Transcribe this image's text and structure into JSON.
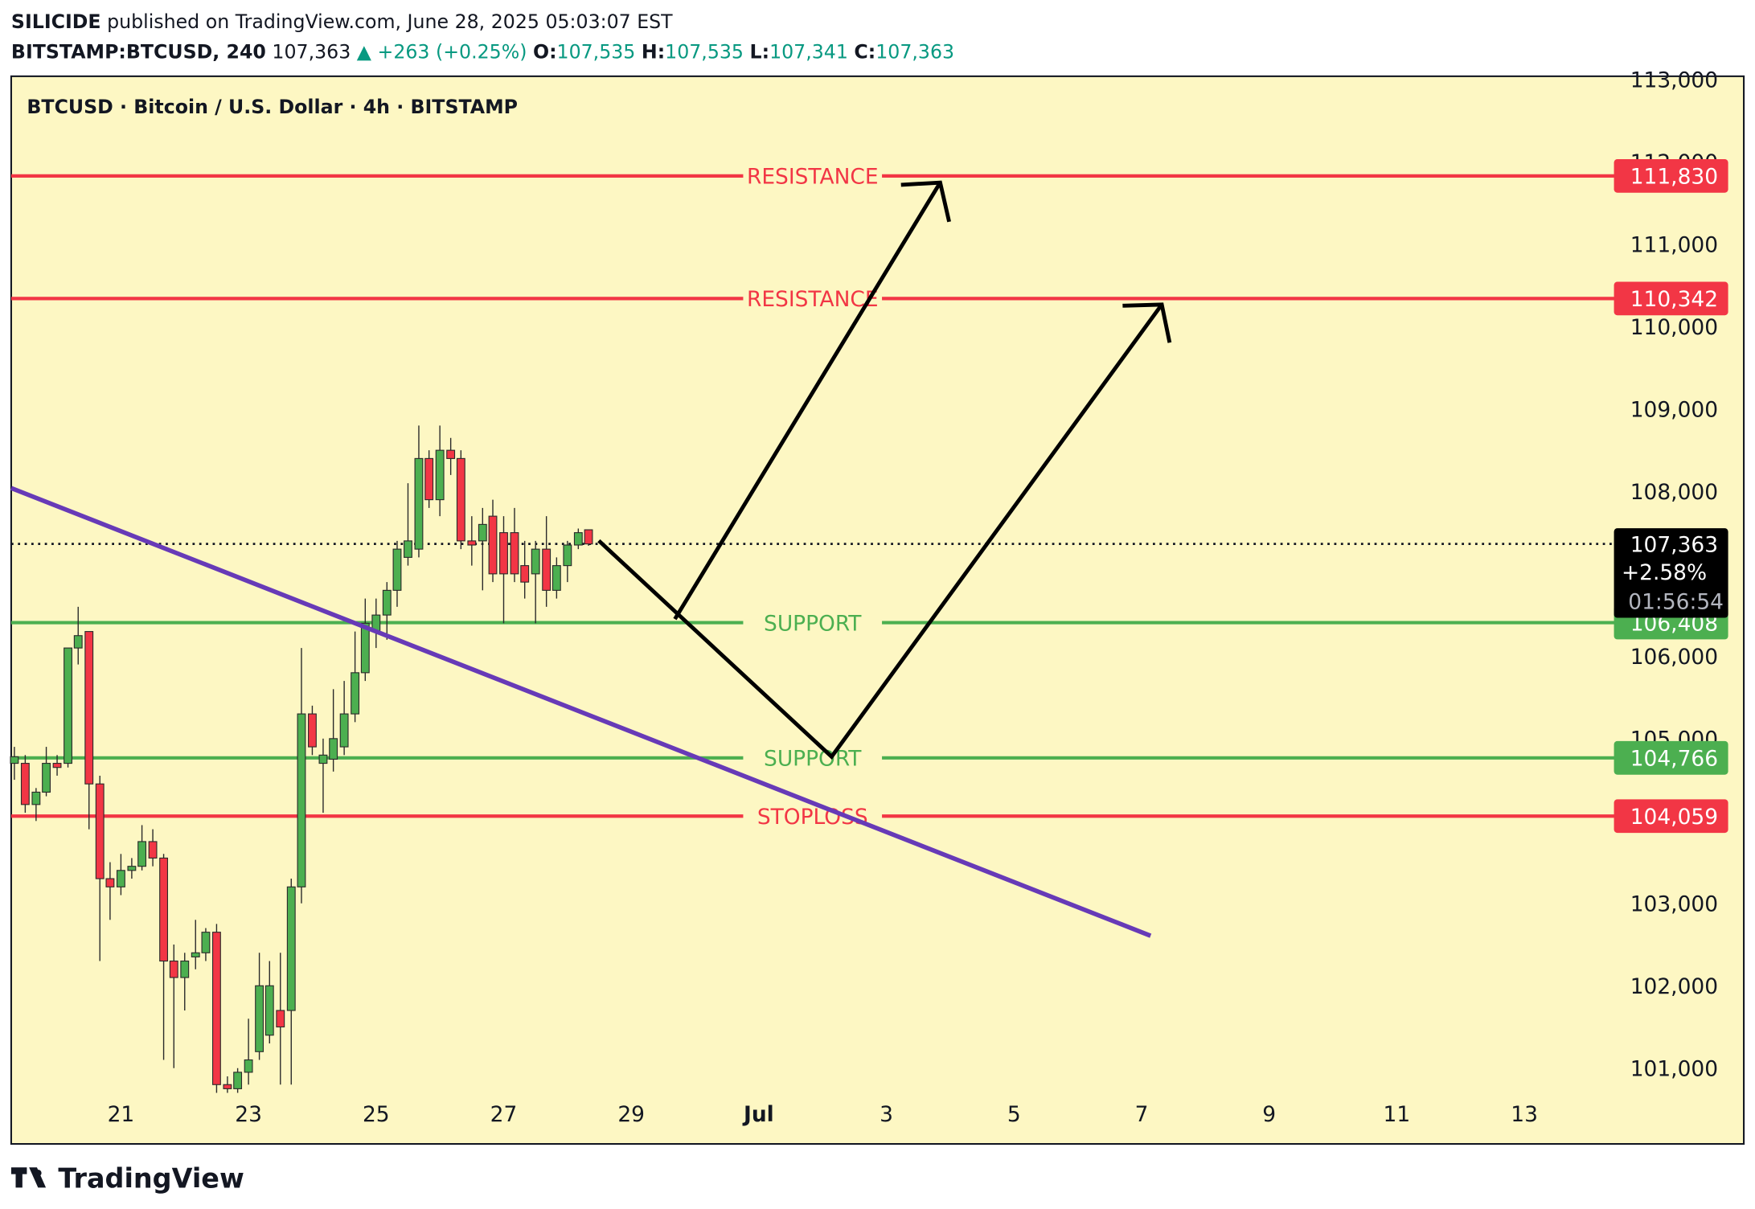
{
  "header": {
    "author": "SILICIDE",
    "published": "published on TradingView.com, June 28, 2025 05:03:07 EST",
    "symbol": "BITSTAMP:BTCUSD, 240",
    "last": "107,363",
    "change": "▲ +263 (+0.25%)",
    "o_label": "O:",
    "o": "107,535",
    "h_label": "H:",
    "h": "107,535",
    "l_label": "L:",
    "l": "107,341",
    "c_label": "C:",
    "c": "107,363"
  },
  "chart_data": {
    "type": "candlestick",
    "title": "BTCUSD · Bitcoin / U.S. Dollar · 4h · BITSTAMP",
    "x": [
      19.33,
      19.5,
      19.67,
      19.83,
      20,
      20.17,
      20.33,
      20.5,
      20.67,
      20.83,
      21,
      21.17,
      21.33,
      21.5,
      21.67,
      21.83,
      22,
      22.17,
      22.33,
      22.5,
      22.67,
      22.83,
      23,
      23.17,
      23.33,
      23.5,
      23.67,
      23.83,
      24,
      24.17,
      24.33,
      24.5,
      24.67,
      24.83,
      25,
      25.17,
      25.33,
      25.5,
      25.67,
      25.83,
      26,
      26.17,
      26.33,
      26.5,
      26.67,
      26.83,
      27,
      27.17,
      27.33,
      27.5,
      27.67,
      27.83,
      28,
      28.17,
      28.33
    ],
    "open": [
      104700,
      104700,
      104200,
      104350,
      104700,
      104700,
      106100,
      106300,
      104450,
      103300,
      103200,
      103400,
      103450,
      103750,
      103550,
      102300,
      102100,
      102350,
      102400,
      102650,
      100800,
      100750,
      100950,
      101200,
      101400,
      101700,
      101700,
      103200,
      105300,
      104700,
      104750,
      104900,
      105300,
      105800,
      106300,
      106500,
      106800,
      107200,
      107300,
      108400,
      107900,
      108500,
      108400,
      107400,
      107400,
      107700,
      107500,
      107500,
      107100,
      107000,
      107300,
      106800,
      107100,
      107350,
      107535
    ],
    "high": [
      104900,
      104800,
      104400,
      104900,
      104800,
      106100,
      106600,
      106300,
      104550,
      103500,
      103600,
      103550,
      103950,
      103900,
      103600,
      102500,
      102400,
      102800,
      102700,
      102750,
      100900,
      101000,
      101600,
      102400,
      102300,
      102400,
      103300,
      106100,
      105400,
      105000,
      105600,
      105700,
      106300,
      106700,
      106700,
      106900,
      107400,
      108100,
      108800,
      108500,
      108800,
      108650,
      108500,
      107700,
      107800,
      107900,
      107700,
      107800,
      107400,
      107400,
      107700,
      107200,
      107400,
      107550,
      107535
    ],
    "low": [
      104500,
      104100,
      104000,
      104300,
      104550,
      104650,
      105900,
      103900,
      102300,
      102800,
      103100,
      103300,
      103400,
      103450,
      101100,
      101000,
      101700,
      102200,
      102300,
      100700,
      100700,
      100700,
      100800,
      101100,
      101300,
      100800,
      100800,
      103000,
      104800,
      104100,
      104600,
      104800,
      105200,
      105700,
      106100,
      106200,
      106600,
      107100,
      107200,
      107800,
      107700,
      108200,
      107300,
      107100,
      106800,
      106900,
      106400,
      106900,
      106700,
      106400,
      106600,
      106700,
      106900,
      107300,
      107341
    ],
    "close": [
      104780,
      104200,
      104350,
      104700,
      104650,
      106100,
      106250,
      104450,
      103300,
      103200,
      103400,
      103450,
      103750,
      103550,
      102300,
      102100,
      102300,
      102400,
      102650,
      100800,
      100750,
      100950,
      101100,
      102000,
      102000,
      101500,
      103200,
      105300,
      104900,
      104800,
      105000,
      105300,
      105800,
      106400,
      106500,
      106800,
      107300,
      107400,
      108400,
      107900,
      108500,
      108400,
      107400,
      107350,
      107600,
      107000,
      107000,
      107000,
      106900,
      107300,
      106800,
      107100,
      107350,
      107500,
      107363
    ],
    "up_color": "#4caf50",
    "down_color": "#f23645",
    "xlim": [
      19.28,
      44.37
    ],
    "ylim": [
      100080,
      113040
    ],
    "xticks": [
      21,
      23,
      25,
      27,
      29,
      {
        "value": 31,
        "label": "Jul"
      },
      {
        "value": 33,
        "label": "3"
      },
      {
        "value": 35,
        "label": "5"
      },
      {
        "value": 37,
        "label": "7"
      },
      {
        "value": 39,
        "label": "9"
      },
      {
        "value": 41,
        "label": "11"
      },
      {
        "value": 43,
        "label": "13"
      }
    ],
    "yticks": [
      {
        "value": 101000,
        "label": "101,000"
      },
      {
        "value": 102000,
        "label": "102,000"
      },
      {
        "value": 103000,
        "label": "103,000"
      },
      {
        "value": 105000,
        "label": "105,000"
      },
      {
        "value": 106000,
        "label": "106,000"
      },
      {
        "value": 108000,
        "label": "108,000"
      },
      {
        "value": 109000,
        "label": "109,000"
      },
      {
        "value": 110000,
        "label": "110,000"
      },
      {
        "value": 111000,
        "label": "111,000"
      },
      {
        "value": 112000,
        "label": "112,000"
      },
      {
        "value": 113000,
        "label": "113,000"
      }
    ],
    "levels": [
      {
        "name": "RESISTANCE",
        "value": 111830,
        "value_label": "111,830",
        "color": "#f23645"
      },
      {
        "name": "RESISTANCE",
        "value": 110342,
        "value_label": "110,342",
        "color": "#f23645"
      },
      {
        "name": "SUPPORT",
        "value": 106408,
        "value_label": "106,408",
        "color": "#4caf50"
      },
      {
        "name": "SUPPORT",
        "value": 104766,
        "value_label": "104,766",
        "color": "#4caf50"
      },
      {
        "name": "STOPLOSS",
        "value": 104059,
        "value_label": "104,059",
        "color": "#f23645"
      }
    ],
    "last": {
      "value": 107363,
      "label": "107,363",
      "change": "+2.58%",
      "countdown": "01:56:54"
    }
  },
  "footer": {
    "brand": "TradingView"
  }
}
